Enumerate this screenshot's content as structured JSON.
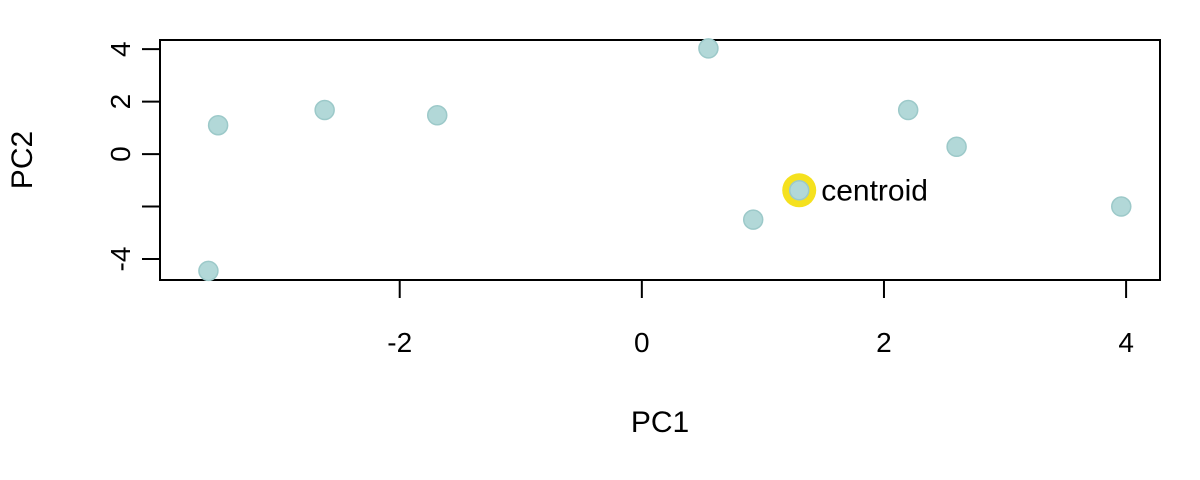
{
  "chart_data": {
    "type": "scatter",
    "title": "",
    "xlabel": "PC1",
    "ylabel": "PC2",
    "xlim": [
      -3.98,
      4.28
    ],
    "ylim": [
      -4.8,
      4.35
    ],
    "xticks": [
      -2,
      0,
      2,
      4
    ],
    "xtick_labels": [
      "-2",
      "0",
      "2",
      "4"
    ],
    "yticks": [
      -4,
      -2,
      0,
      2,
      4
    ],
    "ytick_labels": [
      "-4",
      "",
      "0",
      "2",
      "4"
    ],
    "grid": false,
    "point_color": "#b2d8d8",
    "point_edge_color": "#9cc9c9",
    "highlight_color": "#f5e11e",
    "points": [
      {
        "x": -3.58,
        "y": -4.45
      },
      {
        "x": -3.5,
        "y": 1.1
      },
      {
        "x": -2.62,
        "y": 1.68
      },
      {
        "x": -1.69,
        "y": 1.48
      },
      {
        "x": 0.55,
        "y": 4.03
      },
      {
        "x": 0.92,
        "y": -2.5
      },
      {
        "x": 2.2,
        "y": 1.68
      },
      {
        "x": 2.6,
        "y": 0.28
      },
      {
        "x": 3.96,
        "y": -2.0
      }
    ],
    "centroid": {
      "x": 1.3,
      "y": -1.38,
      "label": "centroid"
    }
  }
}
